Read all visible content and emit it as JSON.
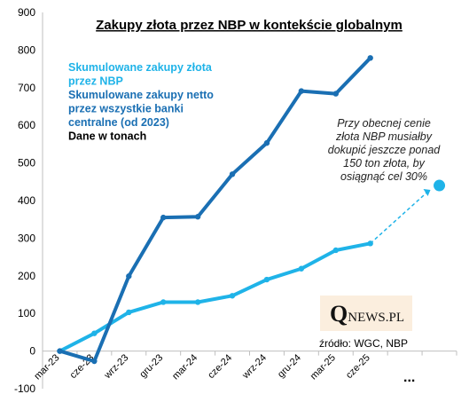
{
  "chart_data": {
    "type": "line",
    "title": "Zakupy złota przez NBP w kontekście globalnym",
    "categories": [
      "mar-23",
      "cze-23",
      "wrz-23",
      "gru-23",
      "mar-24",
      "cze-24",
      "wrz-24",
      "gru-24",
      "mar-25",
      "cze-25",
      "",
      ""
    ],
    "ylim": [
      -100,
      900
    ],
    "yticks": [
      -100,
      0,
      100,
      200,
      300,
      400,
      500,
      600,
      700,
      800,
      900
    ],
    "grid": false,
    "legend_placement": "top-left",
    "series": [
      {
        "name": "Skumulowane zakupy złota przez NBP",
        "color": "#1FB3E8",
        "values": [
          0,
          47,
          103,
          130,
          130,
          147,
          190,
          219,
          268,
          286,
          null,
          null
        ]
      },
      {
        "name": "Skumulowane zakupy netto przez wszystkie banki centralne (od 2023)",
        "color": "#1A6FB3",
        "values": [
          0,
          -27,
          199,
          355,
          357,
          470,
          553,
          691,
          684,
          779,
          null,
          null
        ]
      }
    ],
    "projection": {
      "from_index": 9,
      "from_value": 286,
      "to_index": 11,
      "to_value": 440,
      "color": "#1FB3E8"
    },
    "legend_lines": [
      {
        "text": "Skumulowane zakupy złota",
        "color": "#1FB3E8"
      },
      {
        "text": "przez NBP",
        "color": "#1FB3E8"
      },
      {
        "text": "Skumulowane zakupy netto",
        "color": "#1A6FB3"
      },
      {
        "text": "przez wszystkie  banki",
        "color": "#1A6FB3"
      },
      {
        "text": "centralne (od 2023)",
        "color": "#1A6FB3"
      },
      {
        "text": "Dane w tonach",
        "color": "#000000"
      }
    ],
    "annotation_lines": [
      "Przy obecnej cenie",
      "złota NBP musiałby",
      "dokupić jeszcze ponad",
      "150 ton złota, by",
      "osiągnąć cel 30%"
    ],
    "source": "źródło: WGC, NBP",
    "ellipsis": "...",
    "logo": {
      "initial": "Q",
      "rest": "NEWS.PL"
    }
  }
}
